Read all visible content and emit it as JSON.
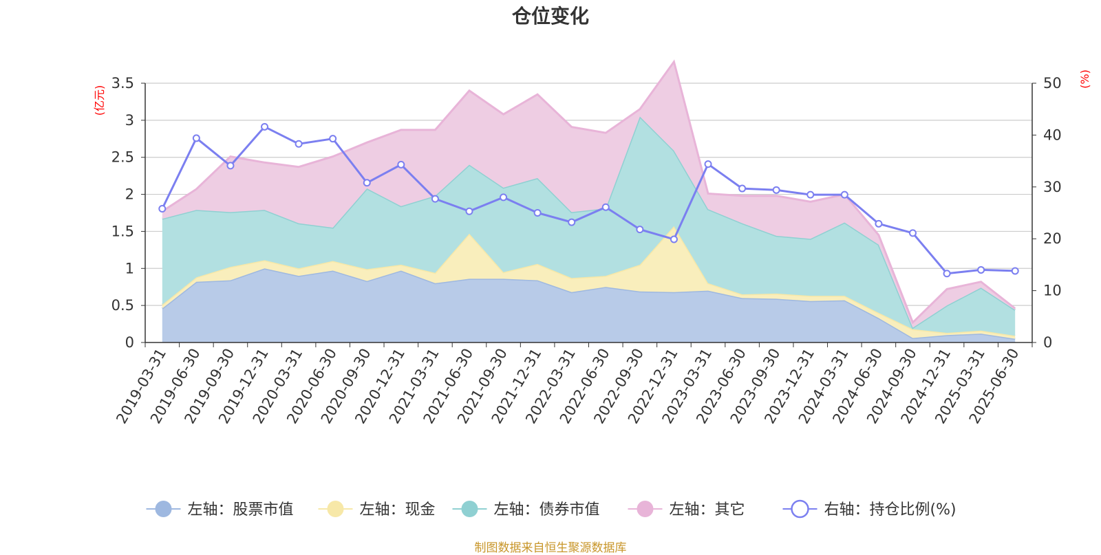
{
  "chart_data": {
    "type": "area",
    "title": "仓位变化",
    "left_axis": {
      "unit": "(亿元)",
      "ylim": [
        0,
        3.5
      ],
      "ticks": [
        "0",
        "0.5",
        "1",
        "1.5",
        "2",
        "2.5",
        "3",
        "3.5"
      ]
    },
    "right_axis": {
      "unit": "(%)",
      "ylim": [
        0,
        50
      ],
      "ticks": [
        "0",
        "10",
        "20",
        "30",
        "40",
        "50"
      ]
    },
    "grid": true,
    "legend_position": "bottom",
    "categories": [
      "2019-03-31",
      "2019-06-30",
      "2019-09-30",
      "2019-12-31",
      "2020-03-31",
      "2020-06-30",
      "2020-09-30",
      "2020-12-31",
      "2021-03-31",
      "2021-06-30",
      "2021-09-30",
      "2021-12-31",
      "2022-03-31",
      "2022-06-30",
      "2022-09-30",
      "2022-12-31",
      "2023-03-31",
      "2023-06-30",
      "2023-09-30",
      "2023-12-31",
      "2024-03-31",
      "2024-06-30",
      "2024-09-30",
      "2024-12-31",
      "2025-03-31",
      "2025-06-30"
    ],
    "series": [
      {
        "name": "左轴：股票市值",
        "axis": "left",
        "stack": true,
        "color": "#9eb8e0",
        "fill": "#b8cbe8",
        "values": [
          0.46,
          0.82,
          0.84,
          1.0,
          0.9,
          0.97,
          0.83,
          0.97,
          0.8,
          0.86,
          0.86,
          0.84,
          0.68,
          0.75,
          0.69,
          0.68,
          0.7,
          0.6,
          0.59,
          0.56,
          0.57,
          0.33,
          0.06,
          0.1,
          0.12,
          0.05
        ]
      },
      {
        "name": "左轴：现金",
        "axis": "left",
        "stack": true,
        "color": "#f7e8a8",
        "fill": "#f9eebc",
        "values": [
          0.05,
          0.06,
          0.18,
          0.11,
          0.1,
          0.13,
          0.16,
          0.08,
          0.14,
          0.61,
          0.09,
          0.22,
          0.19,
          0.15,
          0.36,
          0.89,
          0.1,
          0.05,
          0.07,
          0.07,
          0.06,
          0.07,
          0.12,
          0.03,
          0.04,
          0.04
        ]
      },
      {
        "name": "左轴：债券市值",
        "axis": "left",
        "stack": true,
        "color": "#8fd0d2",
        "fill": "#b2e0e1",
        "values": [
          1.16,
          0.91,
          0.74,
          0.68,
          0.61,
          0.45,
          1.09,
          0.79,
          1.04,
          0.93,
          1.14,
          1.16,
          0.89,
          0.91,
          2.0,
          1.02,
          1.0,
          0.96,
          0.78,
          0.77,
          0.99,
          0.92,
          0.02,
          0.37,
          0.58,
          0.35
        ]
      },
      {
        "name": "左轴：其它",
        "axis": "left",
        "stack": true,
        "color": "#e8b4d8",
        "fill": "#eecde3",
        "values": [
          0.1,
          0.28,
          0.75,
          0.64,
          0.76,
          0.96,
          0.62,
          1.03,
          0.89,
          1.0,
          0.99,
          1.13,
          1.15,
          1.02,
          0.1,
          1.2,
          0.21,
          0.37,
          0.54,
          0.5,
          0.38,
          0.13,
          0.07,
          0.22,
          0.08,
          0.02
        ]
      },
      {
        "name": "右轴：持仓比例(%)",
        "axis": "right",
        "type": "line",
        "color": "#7b7ff0",
        "values": [
          25.8,
          39.4,
          34.1,
          41.6,
          38.3,
          39.3,
          30.8,
          34.3,
          27.7,
          25.3,
          28.0,
          25.0,
          23.2,
          26.1,
          21.8,
          19.9,
          34.4,
          29.7,
          29.4,
          28.5,
          28.5,
          22.9,
          21.1,
          13.3,
          14.0,
          13.8
        ]
      }
    ],
    "source": "制图数据来自恒生聚源数据库"
  }
}
